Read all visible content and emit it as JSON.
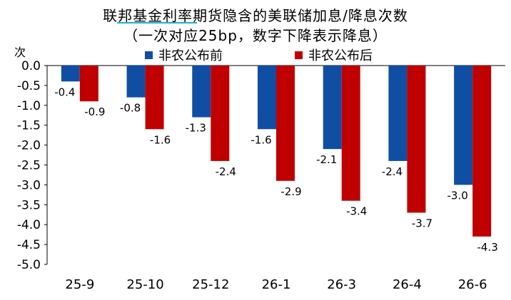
{
  "chart_data": {
    "type": "bar",
    "title": "联邦基金利率期货隐含的美联储加息/降息次数",
    "subtitle": "（一次对应25bp，数字下降表示降息）",
    "ylabel": "次",
    "xlabel": "",
    "categories": [
      "25-9",
      "25-10",
      "25-12",
      "26-1",
      "26-3",
      "26-4",
      "26-6"
    ],
    "series": [
      {
        "name": "非农公布前",
        "color": "#0f4ea3",
        "values": [
          -0.4,
          -0.8,
          -1.3,
          -1.6,
          -2.1,
          -2.4,
          -3.0
        ]
      },
      {
        "name": "非农公布后",
        "color": "#c00000",
        "values": [
          -0.9,
          -1.6,
          -2.4,
          -2.9,
          -3.4,
          -3.7,
          -4.3
        ]
      }
    ],
    "ylim": [
      -5.0,
      0.0
    ],
    "yticks": [
      "0.0",
      "-0.5",
      "-1.0",
      "-1.5",
      "-2.0",
      "-2.5",
      "-3.0",
      "-3.5",
      "-4.0",
      "-4.5",
      "-5.0"
    ],
    "data_labels": [
      [
        "-0.4",
        "-0.8",
        "-1.3",
        "-1.6",
        "-2.1",
        "-2.4",
        "-3.0"
      ],
      [
        "-0.9",
        "-1.6",
        "-2.4",
        "-2.9",
        "-3.4",
        "-3.7",
        "-4.3"
      ]
    ],
    "legend_position": "top",
    "grid": false
  }
}
